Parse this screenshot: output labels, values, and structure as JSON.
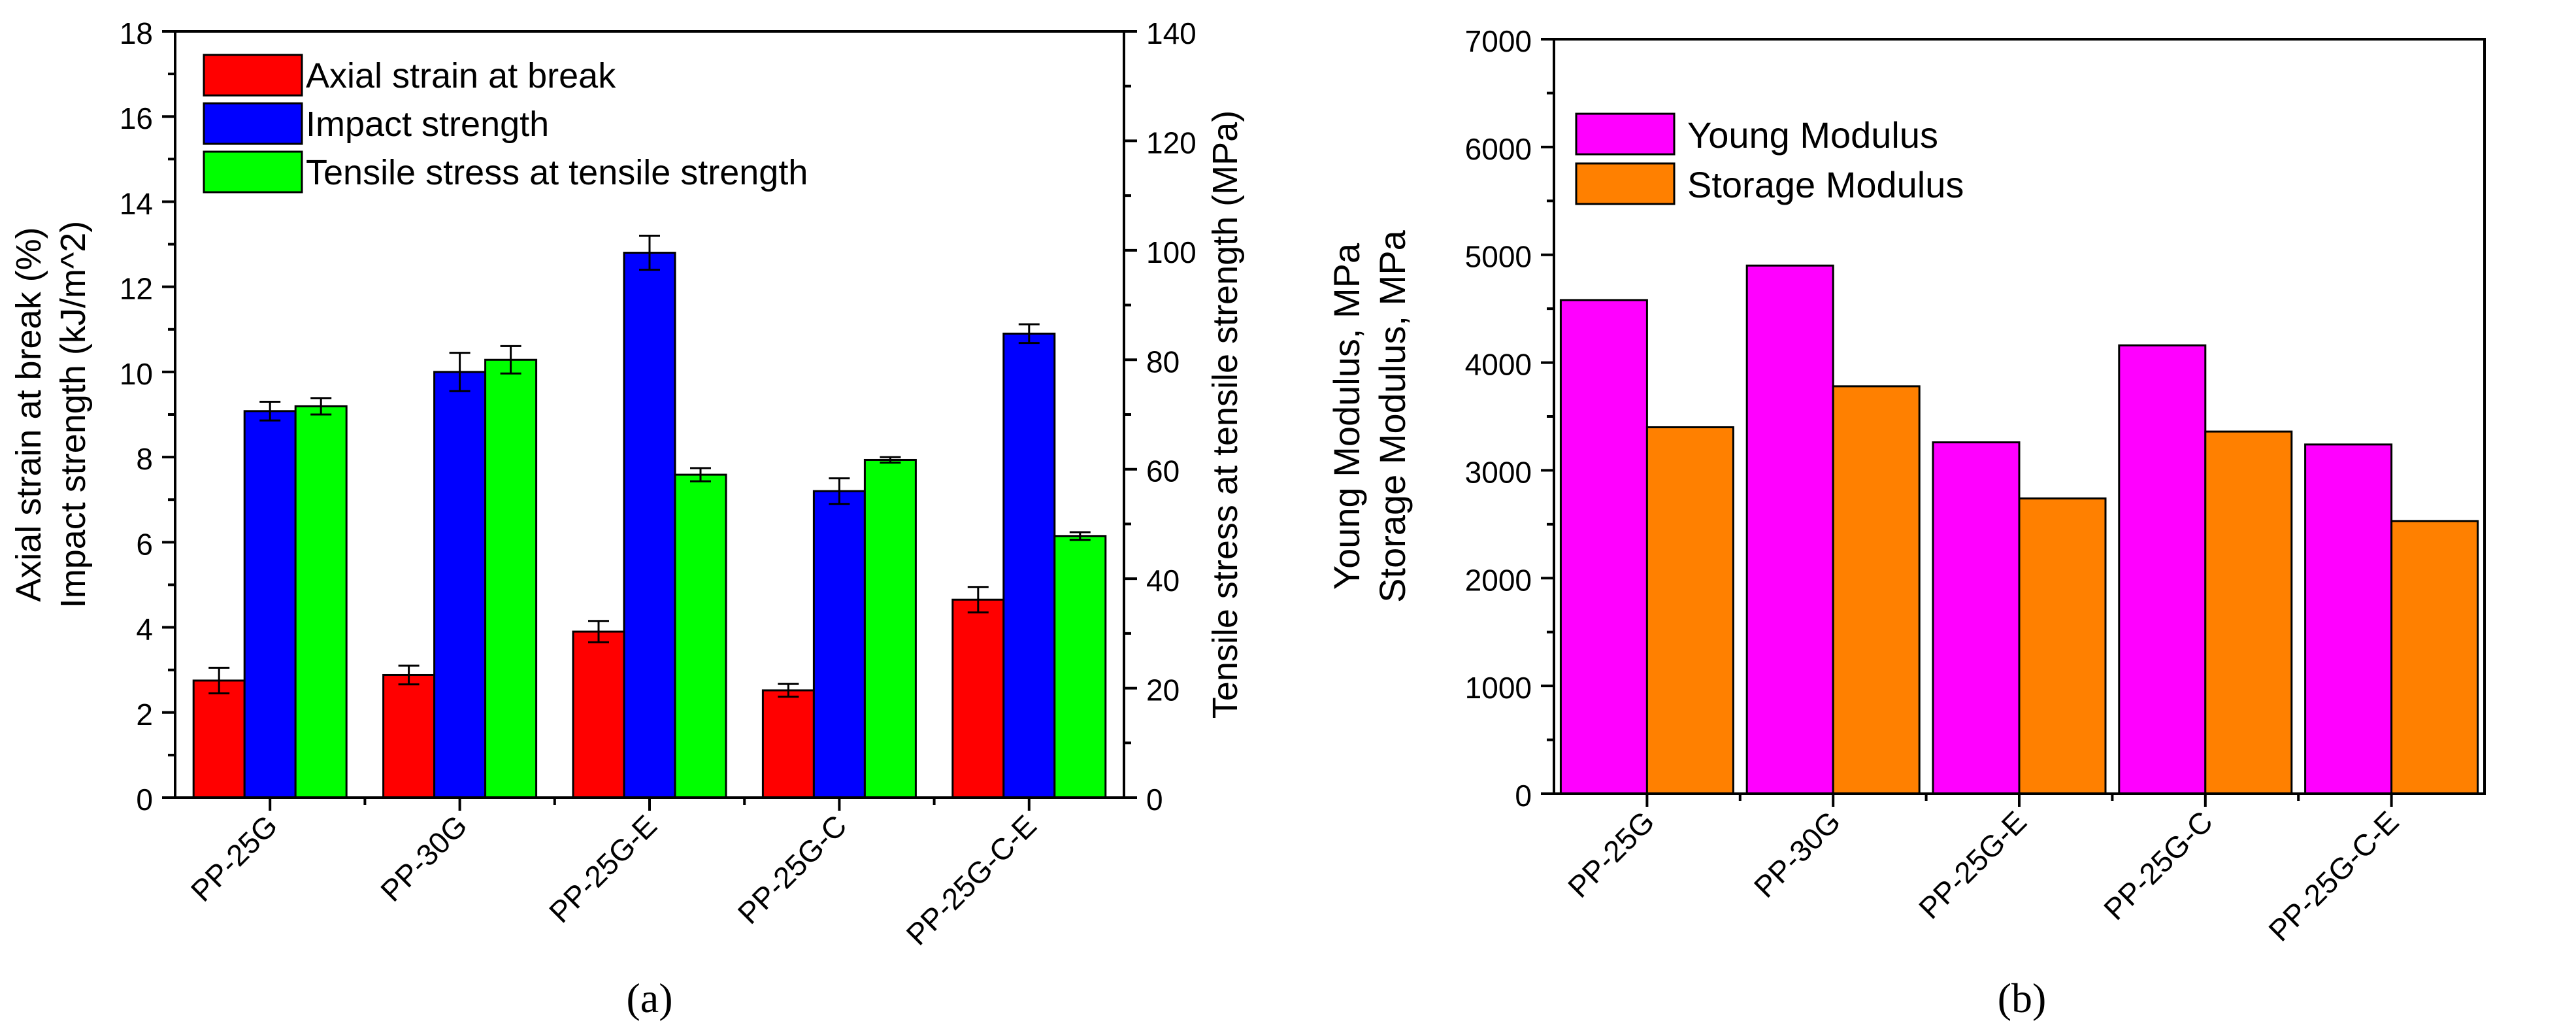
{
  "chart_data": [
    {
      "type": "bar",
      "panel_label": "(a)",
      "categories": [
        "PP-25G",
        "PP-30G",
        "PP-25G-E",
        "PP-25G-C",
        "PP-25G-C-E"
      ],
      "ylabel_lines": [
        "Axial strain at break (%)",
        "Impact strength (kJ/m^2)"
      ],
      "y2label": "Tensile stress at tensile strength (MPa)",
      "xlabel": "",
      "ylim": [
        0,
        18
      ],
      "yticks": [
        "0",
        "2",
        "4",
        "6",
        "8",
        "10",
        "12",
        "14",
        "16",
        "18"
      ],
      "y2lim": [
        0,
        140
      ],
      "y2ticks": [
        "0",
        "20",
        "40",
        "60",
        "80",
        "100",
        "120",
        "140"
      ],
      "legend_position": "top-left",
      "series": [
        {
          "name": "Axial strain at break",
          "axis": "left",
          "color": "#ff0000",
          "values": [
            2.75,
            2.88,
            3.9,
            2.52,
            4.65
          ],
          "errors": [
            0.3,
            0.22,
            0.25,
            0.15,
            0.3
          ]
        },
        {
          "name": "Impact strength",
          "axis": "left",
          "color": "#0000ff",
          "values": [
            9.08,
            10.0,
            12.8,
            7.2,
            10.9
          ],
          "errors": [
            0.22,
            0.45,
            0.4,
            0.3,
            0.22
          ]
        },
        {
          "name": "Tensile stress at tensile strength",
          "axis": "right",
          "color": "#00ff00",
          "values": [
            71.5,
            80.0,
            59.0,
            61.7,
            47.8
          ],
          "errors": [
            1.5,
            2.5,
            1.2,
            0.5,
            0.7
          ]
        }
      ]
    },
    {
      "type": "bar",
      "panel_label": "(b)",
      "categories": [
        "PP-25G",
        "PP-30G",
        "PP-25G-E",
        "PP-25G-C",
        "PP-25G-C-E"
      ],
      "ylabel_lines": [
        "Young Modulus, MPa",
        "Storage Modulus, MPa"
      ],
      "xlabel": "",
      "ylim": [
        0,
        7000
      ],
      "yticks": [
        "0",
        "1000",
        "2000",
        "3000",
        "4000",
        "5000",
        "6000",
        "7000"
      ],
      "legend_position": "top-left",
      "series": [
        {
          "name": "Young Modulus",
          "color": "#ff00ff",
          "values": [
            4580,
            4900,
            3260,
            4160,
            3240
          ]
        },
        {
          "name": "Storage Modulus",
          "color": "#ff8000",
          "values": [
            3400,
            3780,
            2740,
            3360,
            2530
          ]
        }
      ]
    }
  ]
}
